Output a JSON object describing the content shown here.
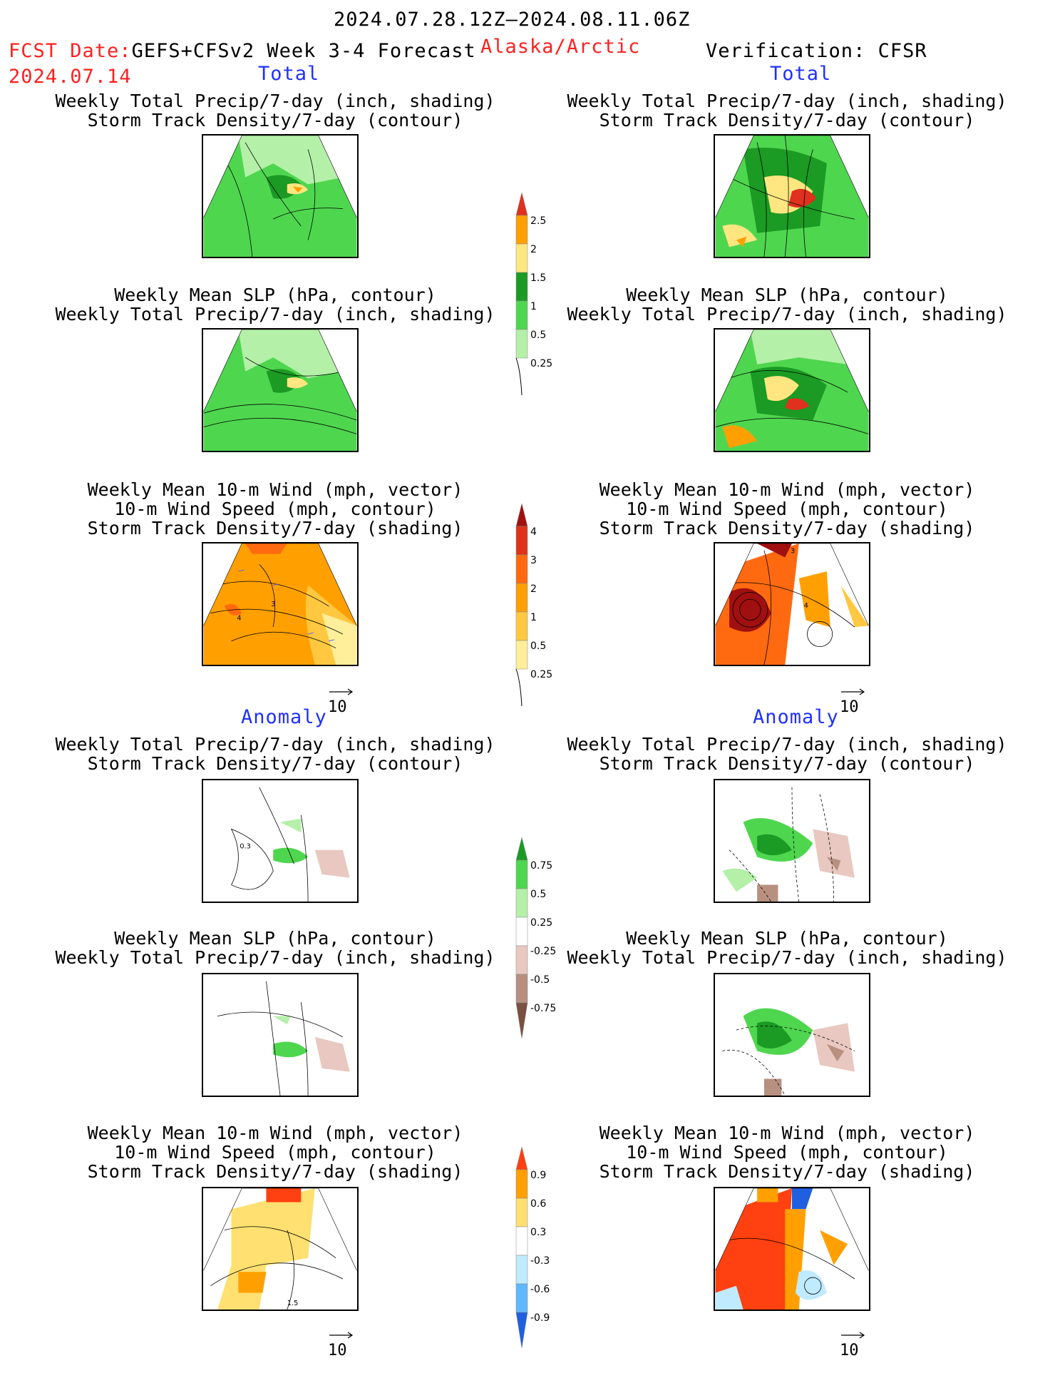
{
  "header": {
    "period": "2024.07.28.12Z–2024.08.11.06Z",
    "fcst_label": "FCST Date:",
    "model": "GEFS+CFSv2 Week 3-4 Forecast",
    "fcst_date": "2024.07.14",
    "region": "Alaska/Arctic",
    "verification": "Verification: CFSR"
  },
  "sections": {
    "total": "Total",
    "anomaly": "Anomaly"
  },
  "titles": {
    "precip_storm": [
      "Weekly Total Precip/7-day (inch, shading)",
      "Storm Track Density/7-day (contour)"
    ],
    "slp_precip": [
      "Weekly Mean SLP (hPa, contour)",
      "Weekly Total Precip/7-day (inch, shading)"
    ],
    "wind_storm": [
      "Weekly Mean 10-m Wind (mph, vector)",
      "10-m Wind Speed (mph, contour)",
      "Storm Track Density/7-day (shading)"
    ]
  },
  "vector_ref": "10",
  "colorbars": {
    "precip_total": {
      "labels": [
        "2.5",
        "2",
        "1.5",
        "1",
        "0.5",
        "0.25"
      ],
      "colors": [
        "#e0301e",
        "#ffa000",
        "#ffe680",
        "#1b9a24",
        "#4fd64f",
        "#b4f0a8"
      ]
    },
    "storm_total": {
      "labels": [
        "4",
        "3",
        "2",
        "1",
        "0.5",
        "0.25"
      ],
      "colors": [
        "#a01010",
        "#e03218",
        "#ff6a10",
        "#ffa000",
        "#ffc840",
        "#ffee9a"
      ]
    },
    "precip_anom": {
      "labels": [
        "0.75",
        "0.5",
        "0.25",
        "-0.25",
        "-0.5",
        "-0.75"
      ],
      "colors": [
        "#1b9a24",
        "#4fd64f",
        "#b4f0a8",
        "#ffffff",
        "#e8c8c0",
        "#b89080",
        "#7a5040"
      ]
    },
    "storm_anom": {
      "labels": [
        "0.9",
        "0.6",
        "0.3",
        "-0.3",
        "-0.6",
        "-0.9"
      ],
      "colors": [
        "#ff4010",
        "#ffa000",
        "#ffe070",
        "#ffffff",
        "#bfeaff",
        "#60b8ff",
        "#2060e0"
      ]
    }
  },
  "map_labels": {
    "storm_total_fcst": [
      "3",
      "4"
    ],
    "storm_total_obs": [
      "3",
      "4"
    ],
    "precip_anom_fcst": [
      "0.3"
    ],
    "wind_anom_fcst": [
      "1.5"
    ]
  }
}
